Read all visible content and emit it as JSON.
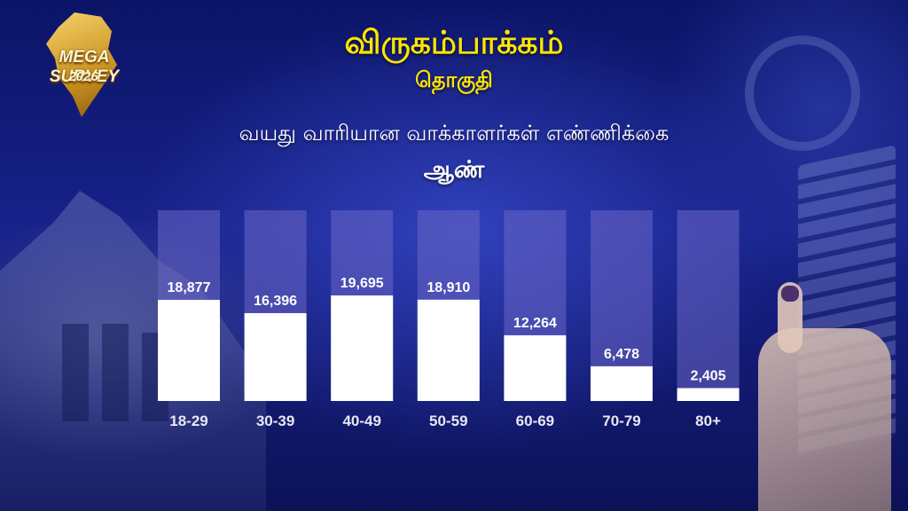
{
  "logo": {
    "line1": "MEGA SURVEY",
    "line2": "2026"
  },
  "header": {
    "title": "விருகம்பாக்கம்",
    "subtitle": "தொகுதி",
    "chart_heading": "வயது வாரியான வாக்காளர்கள் எண்ணிக்கை",
    "gender": "ஆண்"
  },
  "colors": {
    "title": "#ffe500",
    "bar_fill": "#ffffff",
    "bar_track": "#6a66c4",
    "background": "#0b1466"
  },
  "chart_data": {
    "type": "bar",
    "categories": [
      "18-29",
      "30-39",
      "40-49",
      "50-59",
      "60-69",
      "70-79",
      "80+"
    ],
    "values": [
      18877,
      16396,
      19695,
      18910,
      12264,
      6478,
      2405
    ],
    "value_labels": [
      "18,877",
      "16,396",
      "19,695",
      "18,910",
      "12,264",
      "6,478",
      "2,405"
    ],
    "title": "வயது வாரியான வாக்காளர்கள் எண்ணிக்கை",
    "xlabel": "",
    "ylabel": "",
    "grid": false,
    "legend": "none"
  }
}
